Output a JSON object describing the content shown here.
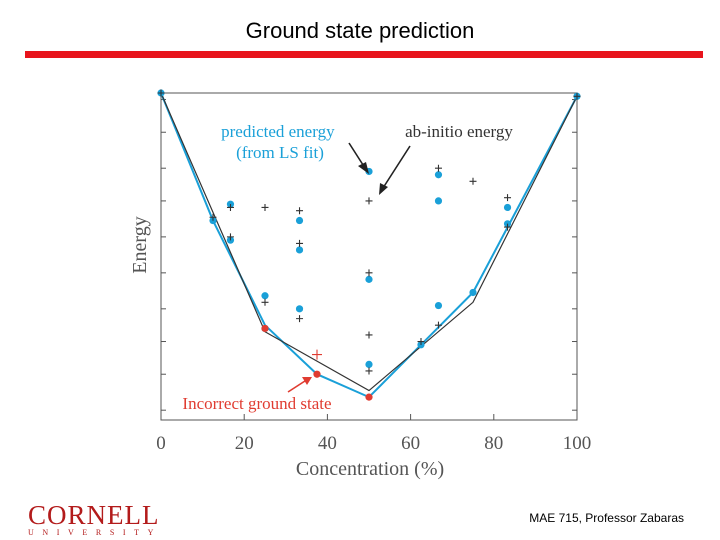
{
  "slide": {
    "title": "Ground state prediction",
    "footer": "MAE 715, Professor Zabaras",
    "logo_main": "CORNELL",
    "logo_sub": "UNIVERSITY"
  },
  "colors": {
    "accent_rule": "#e8141c",
    "predicted": "#1aa0d8",
    "abinitio": "#333333",
    "incorrect": "#e03c31",
    "logo": "#b31b1b"
  },
  "chart_data": {
    "type": "scatter",
    "xlabel": "Concentration (%)",
    "ylabel": "Energy",
    "xlim": [
      0,
      100
    ],
    "ylim": [
      0,
      100
    ],
    "x_ticks": [
      0,
      20,
      40,
      60,
      80,
      100
    ],
    "y_ticks": [
      3,
      14,
      24,
      34,
      45,
      56,
      67,
      77,
      88,
      98
    ],
    "show_y_tick_labels": false,
    "grid": false,
    "annotations": {
      "predicted": "predicted energy\n(from LS fit)",
      "abinitio": "ab-initio energy",
      "incorrect": "Incorrect ground state"
    },
    "series": [
      {
        "name": "predicted energy (from LS fit)",
        "marker": "dot",
        "x": [
          0,
          12.5,
          16.7,
          16.7,
          25,
          25,
          33.3,
          33.3,
          33.3,
          50,
          50,
          50,
          62.5,
          66.7,
          66.7,
          66.7,
          75,
          83.3,
          83.3,
          100
        ],
        "y": [
          100,
          61,
          66,
          55,
          38,
          28,
          61,
          52,
          34,
          76,
          43,
          17,
          23,
          75,
          67,
          35,
          39,
          65,
          60,
          99
        ]
      },
      {
        "name": "ab-initio energy",
        "marker": "plus",
        "x": [
          0,
          12.5,
          16.7,
          16.7,
          25,
          25,
          25,
          33.3,
          33.3,
          33.3,
          50,
          50,
          50,
          50,
          62.5,
          66.7,
          66.7,
          75,
          83.3,
          83.3,
          100
        ],
        "y": [
          100,
          62,
          65,
          56,
          65,
          36,
          28,
          64,
          54,
          31,
          67,
          45,
          26,
          15,
          24,
          77,
          29,
          73,
          68,
          59,
          99
        ]
      },
      {
        "name": "predicted hull",
        "line": true,
        "x": [
          0,
          12.5,
          25,
          37.5,
          50,
          62.5,
          75,
          100
        ],
        "y": [
          100,
          61,
          29,
          14,
          7,
          23,
          39,
          99
        ]
      },
      {
        "name": "ab-initio hull",
        "line": true,
        "x": [
          0,
          25,
          50,
          75,
          100
        ],
        "y": [
          100,
          27,
          9,
          36,
          99
        ]
      },
      {
        "name": "incorrect ground state",
        "marker": "dot",
        "x": [
          25,
          37.5,
          50
        ],
        "y": [
          28,
          14,
          7
        ]
      },
      {
        "name": "incorrect ab-initio",
        "marker": "plus",
        "x": [
          37.5
        ],
        "y": [
          20
        ]
      }
    ]
  }
}
